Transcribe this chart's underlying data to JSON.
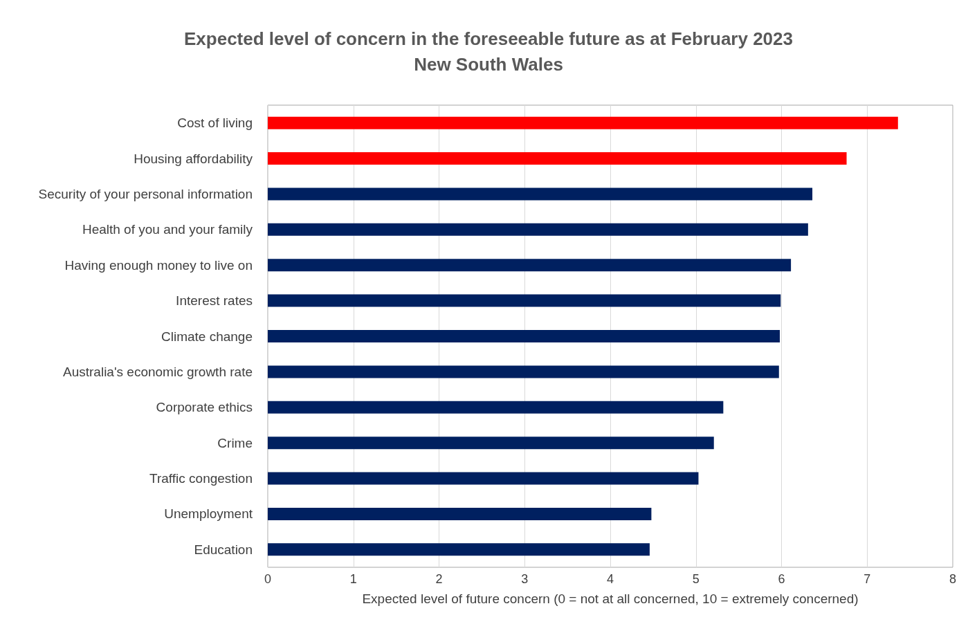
{
  "chart_data": {
    "type": "bar",
    "orientation": "horizontal",
    "title": "Expected level of concern in the foreseeable future as at February 2023\nNew South Wales",
    "xlabel": "Expected level of future concern (0 = not at all concerned, 10 = extremely concerned)",
    "categories": [
      "Cost of living",
      "Housing affordability",
      "Security of your personal information",
      "Health of you and your family",
      "Having enough money to live on",
      "Interest rates",
      "Climate change",
      "Australia's economic growth rate",
      "Corporate ethics",
      "Crime",
      "Traffic congestion",
      "Unemployment",
      "Education"
    ],
    "values": [
      7.36,
      6.76,
      6.36,
      6.31,
      6.11,
      5.99,
      5.98,
      5.97,
      5.32,
      5.21,
      5.03,
      4.48,
      4.46
    ],
    "colors": [
      "#ff0000",
      "#ff0000",
      "#002060",
      "#002060",
      "#002060",
      "#002060",
      "#002060",
      "#002060",
      "#002060",
      "#002060",
      "#002060",
      "#002060",
      "#002060"
    ],
    "xlim": [
      0,
      8
    ],
    "xticks": [
      0,
      1,
      2,
      3,
      4,
      5,
      6,
      7,
      8
    ],
    "grid": "x"
  }
}
